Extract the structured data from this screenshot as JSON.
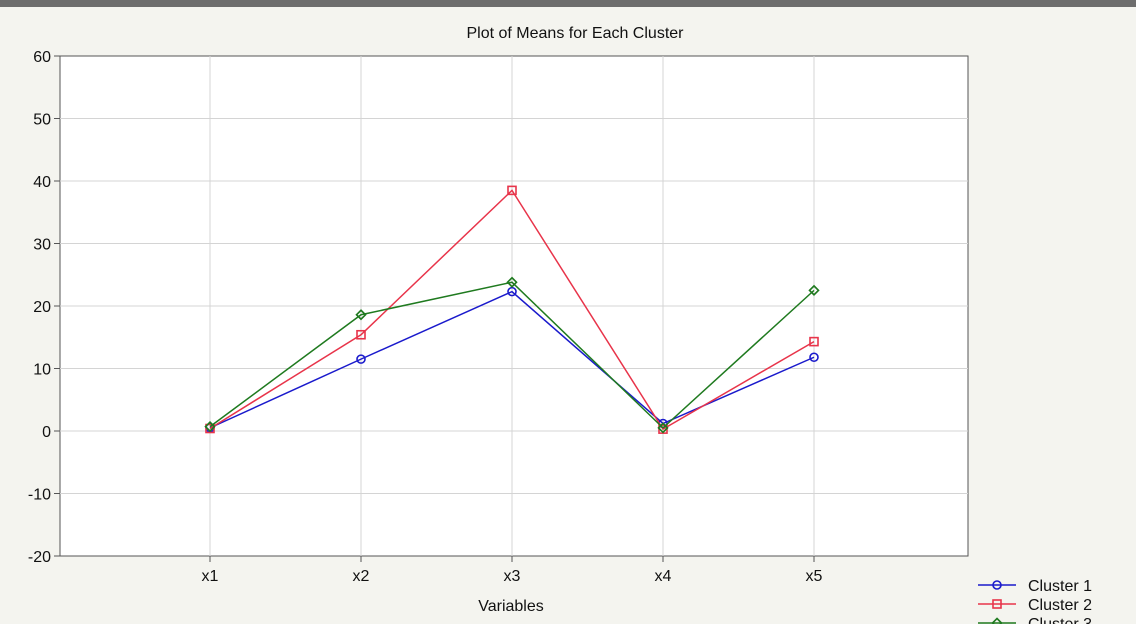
{
  "chart_data": {
    "type": "line",
    "title": "Plot of Means for Each Cluster",
    "xlabel": "Variables",
    "ylabel": "",
    "categories": [
      "x1",
      "x2",
      "x3",
      "x4",
      "x5"
    ],
    "ylim": [
      -20,
      60
    ],
    "yticks": [
      -20,
      -10,
      0,
      10,
      20,
      30,
      40,
      50,
      60
    ],
    "grid": true,
    "legend_position": "bottom-right",
    "series": [
      {
        "name": "Cluster  1",
        "color": "#1a1acc",
        "marker": "circle",
        "values": [
          0.5,
          11.5,
          22.3,
          1.2,
          11.8
        ]
      },
      {
        "name": "Cluster  2",
        "color": "#e8344a",
        "marker": "square",
        "values": [
          0.4,
          15.4,
          38.5,
          0.3,
          14.3
        ]
      },
      {
        "name": "Cluster  3",
        "color": "#1f7a1f",
        "marker": "diamond",
        "values": [
          0.7,
          18.6,
          23.8,
          0.5,
          22.5
        ]
      }
    ]
  }
}
